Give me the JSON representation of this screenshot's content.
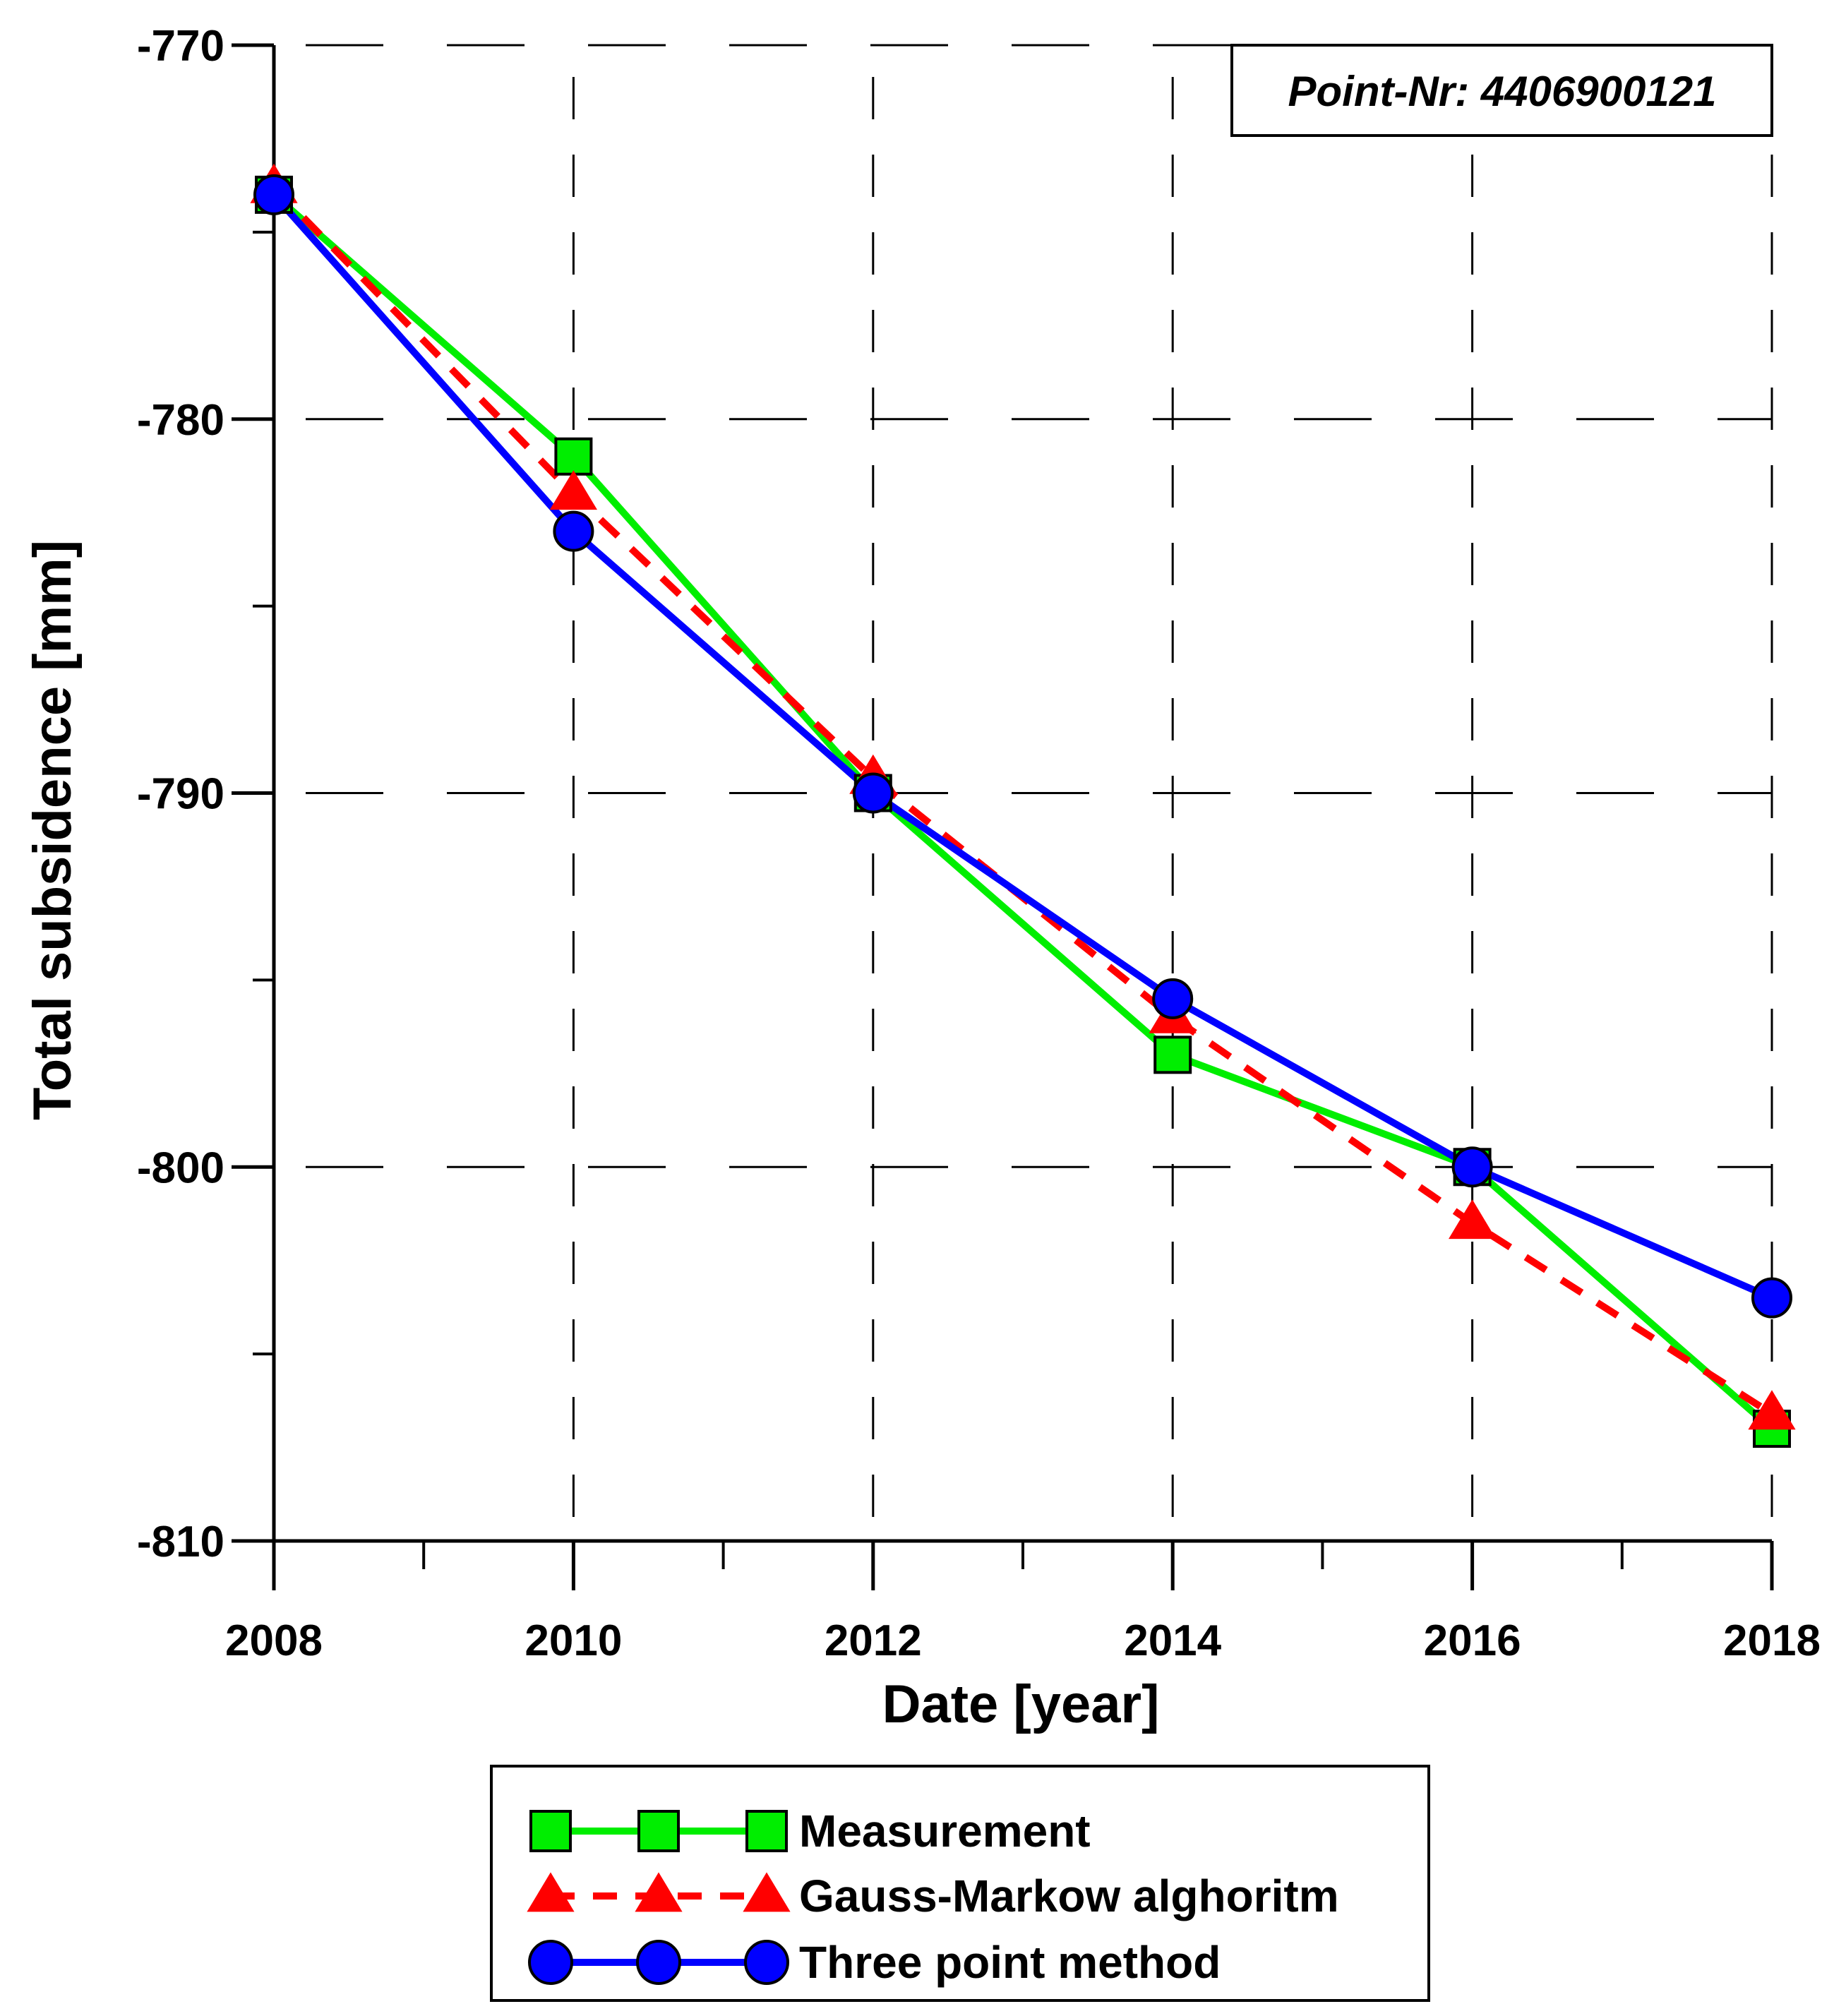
{
  "chart_data": {
    "type": "line",
    "x": [
      2008,
      2010,
      2012,
      2014,
      2016,
      2018
    ],
    "series": [
      {
        "name": "Measurement",
        "values": [
          -774,
          -781,
          -790,
          -797,
          -800,
          -807
        ],
        "color": "#00ee00",
        "marker": "square",
        "line": "solid"
      },
      {
        "name": "Gauss-Markow alghoritm",
        "values": [
          -773.8,
          -782,
          -789.6,
          -796,
          -801.5,
          -806.6
        ],
        "color": "#ff0000",
        "marker": "triangle",
        "line": "dashed"
      },
      {
        "name": "Three point method",
        "values": [
          -774,
          -783,
          -790,
          -795.5,
          -800,
          -803.5
        ],
        "color": "#0000ff",
        "marker": "circle",
        "line": "solid"
      }
    ],
    "x_ticks": [
      "2008",
      "2010",
      "2012",
      "2014",
      "2016",
      "2018"
    ],
    "y_ticks": [
      "-770",
      "-780",
      "-790",
      "-800",
      "-810"
    ],
    "xlim": [
      2008,
      2018
    ],
    "ylim": [
      -810,
      -770
    ],
    "xlabel": "Date [year]",
    "ylabel": "Total subsidence [mm]",
    "grid": true,
    "annotation": "Point-Nr: 4406900121",
    "legend_position": "bottom-center"
  }
}
